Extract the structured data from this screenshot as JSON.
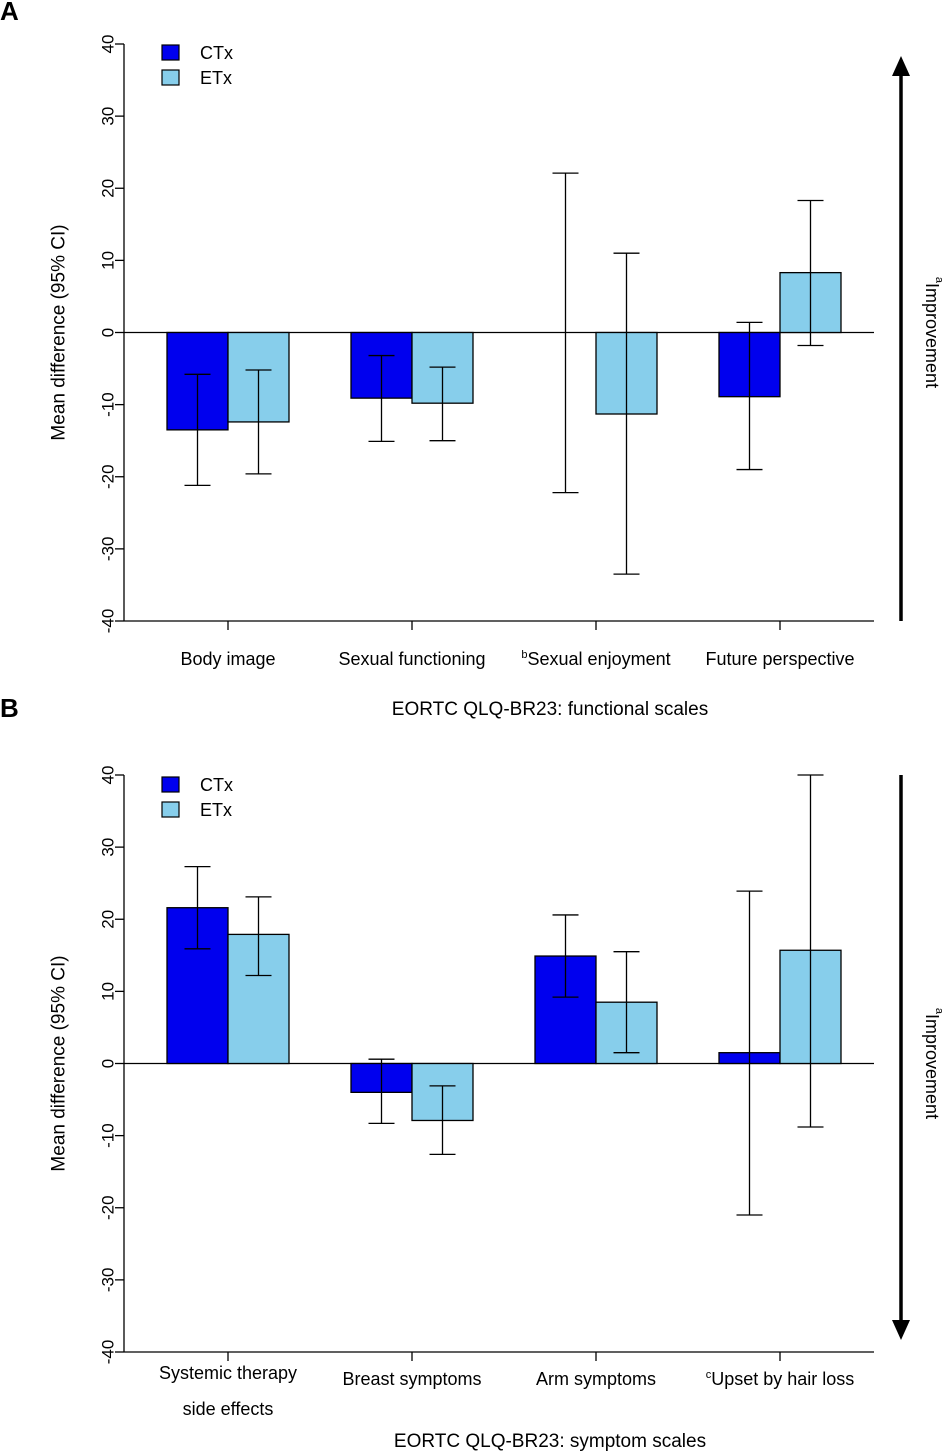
{
  "colors": {
    "ctx": "#0000ee",
    "etx": "#87ceeb",
    "stroke": "#000000"
  },
  "legend": [
    {
      "name": "CTx",
      "color_key": "ctx"
    },
    {
      "name": "ETx",
      "color_key": "etx"
    }
  ],
  "side_label": {
    "sup": "a",
    "text": "Improvement"
  },
  "chart_data": [
    {
      "panel": "A",
      "type": "bar",
      "xlabel": "EORTC QLQ-BR23: functional scales",
      "ylabel": "Mean difference (95% CI)",
      "ylim": [
        -40,
        40
      ],
      "yticks": [
        40,
        30,
        20,
        10,
        0,
        -10,
        -20,
        -30,
        -40
      ],
      "arrow": "up",
      "categories": [
        {
          "sup": "",
          "lines": [
            "Body image"
          ]
        },
        {
          "sup": "",
          "lines": [
            "Sexual functioning"
          ]
        },
        {
          "sup": "b",
          "lines": [
            "Sexual enjoyment"
          ]
        },
        {
          "sup": "",
          "lines": [
            "Future perspective"
          ]
        }
      ],
      "series": [
        {
          "name": "CTx",
          "values": [
            -13.5,
            -9.1,
            0,
            -8.9
          ],
          "lower": [
            -21.2,
            -15.1,
            -22.2,
            -19.0
          ],
          "upper": [
            -5.8,
            -3.2,
            22.1,
            1.4
          ]
        },
        {
          "name": "ETx",
          "values": [
            -12.4,
            -9.8,
            -11.3,
            8.3
          ],
          "lower": [
            -19.6,
            -15.0,
            -33.5,
            -1.8
          ],
          "upper": [
            -5.2,
            -4.8,
            11.0,
            18.3
          ]
        }
      ]
    },
    {
      "panel": "B",
      "type": "bar",
      "xlabel": "EORTC QLQ-BR23: symptom scales",
      "ylabel": "Mean difference (95% CI)",
      "ylim": [
        -40,
        40
      ],
      "yticks": [
        40,
        30,
        20,
        10,
        0,
        -10,
        -20,
        -30,
        -40
      ],
      "arrow": "down",
      "categories": [
        {
          "sup": "",
          "lines": [
            "Systemic therapy",
            "side effects"
          ]
        },
        {
          "sup": "",
          "lines": [
            "Breast symptoms"
          ]
        },
        {
          "sup": "",
          "lines": [
            "Arm symptoms"
          ]
        },
        {
          "sup": "c",
          "lines": [
            "Upset by hair loss"
          ]
        }
      ],
      "series": [
        {
          "name": "CTx",
          "values": [
            21.6,
            -4.0,
            14.9,
            1.5
          ],
          "lower": [
            15.9,
            -8.3,
            9.2,
            -21.0
          ],
          "upper": [
            27.3,
            0.6,
            20.6,
            23.9
          ]
        },
        {
          "name": "ETx",
          "values": [
            17.9,
            -7.9,
            8.5,
            15.7
          ],
          "lower": [
            12.2,
            -12.6,
            1.5,
            -8.8
          ],
          "upper": [
            23.1,
            -3.1,
            15.5,
            40.0
          ]
        }
      ]
    }
  ]
}
